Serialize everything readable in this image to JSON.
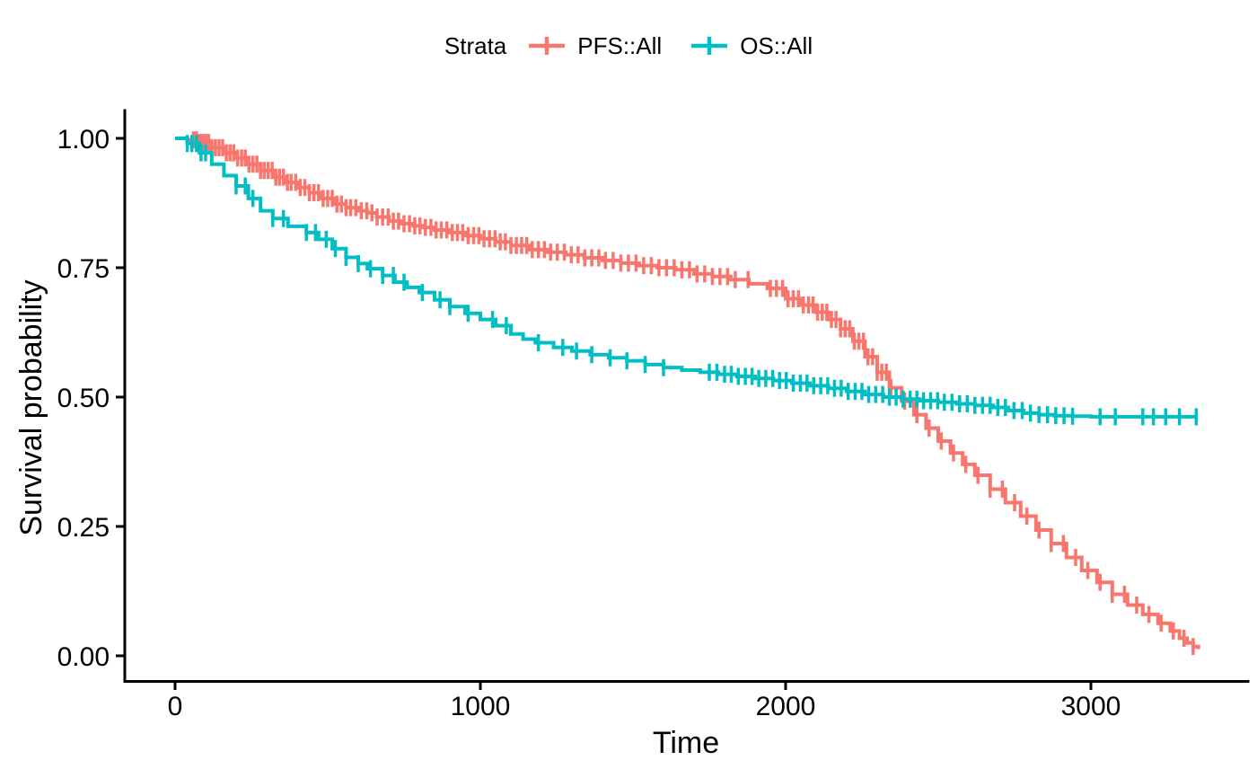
{
  "legend": {
    "title": "Strata",
    "items": [
      {
        "label": "PFS::All",
        "color": "#F8766D"
      },
      {
        "label": "OS::All",
        "color": "#00BFC4"
      }
    ]
  },
  "chart_data": {
    "type": "line",
    "subtype": "kaplan-meier-step-curves-with-censor-marks",
    "title": "",
    "xlabel": "Time",
    "ylabel": "Survival probability",
    "xlim": [
      0,
      3353
    ],
    "ylim": [
      0,
      1
    ],
    "grid": false,
    "legend_position": "top-center",
    "x_ticks": [
      {
        "value": 0,
        "label": "0"
      },
      {
        "value": 1000,
        "label": "1000"
      },
      {
        "value": 2000,
        "label": "2000"
      },
      {
        "value": 3000,
        "label": "3000"
      }
    ],
    "y_ticks": [
      {
        "value": 0.0,
        "label": "0.00"
      },
      {
        "value": 0.25,
        "label": "0.25"
      },
      {
        "value": 0.5,
        "label": "0.50"
      },
      {
        "value": 0.75,
        "label": "0.75"
      },
      {
        "value": 1.0,
        "label": "1.00"
      }
    ],
    "series": [
      {
        "name": "PFS::All",
        "color": "#F8766D",
        "points": [
          [
            0,
            1.0
          ],
          [
            40,
            0.997
          ],
          [
            80,
            0.992
          ],
          [
            120,
            0.982
          ],
          [
            160,
            0.972
          ],
          [
            200,
            0.962
          ],
          [
            240,
            0.95
          ],
          [
            280,
            0.938
          ],
          [
            320,
            0.925
          ],
          [
            360,
            0.915
          ],
          [
            400,
            0.905
          ],
          [
            440,
            0.895
          ],
          [
            480,
            0.884
          ],
          [
            520,
            0.873
          ],
          [
            560,
            0.866
          ],
          [
            600,
            0.86
          ],
          [
            630,
            0.856
          ],
          [
            660,
            0.848
          ],
          [
            700,
            0.84
          ],
          [
            740,
            0.835
          ],
          [
            780,
            0.831
          ],
          [
            810,
            0.828
          ],
          [
            850,
            0.823
          ],
          [
            900,
            0.818
          ],
          [
            950,
            0.812
          ],
          [
            1000,
            0.806
          ],
          [
            1050,
            0.8
          ],
          [
            1100,
            0.793
          ],
          [
            1160,
            0.785
          ],
          [
            1220,
            0.78
          ],
          [
            1280,
            0.775
          ],
          [
            1340,
            0.769
          ],
          [
            1400,
            0.764
          ],
          [
            1460,
            0.759
          ],
          [
            1520,
            0.754
          ],
          [
            1580,
            0.75
          ],
          [
            1640,
            0.746
          ],
          [
            1700,
            0.738
          ],
          [
            1760,
            0.733
          ],
          [
            1820,
            0.727
          ],
          [
            1880,
            0.719
          ],
          [
            1940,
            0.71
          ],
          [
            2000,
            0.69
          ],
          [
            2050,
            0.678
          ],
          [
            2100,
            0.664
          ],
          [
            2140,
            0.65
          ],
          [
            2180,
            0.632
          ],
          [
            2220,
            0.608
          ],
          [
            2260,
            0.578
          ],
          [
            2300,
            0.548
          ],
          [
            2340,
            0.518
          ],
          [
            2380,
            0.492
          ],
          [
            2420,
            0.466
          ],
          [
            2460,
            0.44
          ],
          [
            2500,
            0.415
          ],
          [
            2540,
            0.392
          ],
          [
            2580,
            0.37
          ],
          [
            2620,
            0.349
          ],
          [
            2670,
            0.322
          ],
          [
            2720,
            0.296
          ],
          [
            2770,
            0.27
          ],
          [
            2820,
            0.243
          ],
          [
            2870,
            0.217
          ],
          [
            2920,
            0.19
          ],
          [
            2970,
            0.165
          ],
          [
            3020,
            0.142
          ],
          [
            3070,
            0.119
          ],
          [
            3120,
            0.098
          ],
          [
            3170,
            0.08
          ],
          [
            3220,
            0.063
          ],
          [
            3260,
            0.048
          ],
          [
            3290,
            0.034
          ],
          [
            3315,
            0.025
          ],
          [
            3335,
            0.018
          ],
          [
            3352,
            0.013
          ]
        ],
        "censor_times": [
          60,
          70,
          80,
          90,
          100,
          110,
          120,
          132,
          144,
          156,
          168,
          180,
          192,
          205,
          218,
          230,
          242,
          255,
          268,
          280,
          292,
          305,
          318,
          330,
          342,
          355,
          368,
          380,
          395,
          410,
          425,
          440,
          455,
          470,
          485,
          500,
          515,
          530,
          545,
          560,
          575,
          592,
          610,
          628,
          645,
          662,
          680,
          698,
          715,
          732,
          750,
          768,
          785,
          802,
          820,
          838,
          855,
          872,
          890,
          908,
          925,
          942,
          960,
          978,
          995,
          1012,
          1030,
          1048,
          1065,
          1082,
          1100,
          1118,
          1135,
          1152,
          1170,
          1190,
          1210,
          1230,
          1252,
          1275,
          1298,
          1320,
          1342,
          1365,
          1388,
          1410,
          1435,
          1460,
          1485,
          1510,
          1535,
          1560,
          1585,
          1610,
          1635,
          1660,
          1685,
          1710,
          1735,
          1760,
          1785,
          1810,
          1835,
          1877,
          1950,
          1970,
          1990,
          2008,
          2025,
          2042,
          2058,
          2075,
          2090,
          2105,
          2120,
          2135,
          2150,
          2165,
          2180,
          2195,
          2210,
          2225,
          2240,
          2255,
          2270,
          2285,
          2300,
          2315,
          2330,
          2345,
          2390,
          2430,
          2470,
          2510,
          2550,
          2590,
          2630,
          2670,
          2710,
          2750,
          2790,
          2830,
          2870,
          2910,
          2950,
          2990,
          3030,
          3070,
          3110,
          3150,
          3190,
          3230,
          3270,
          3305,
          3335
        ]
      },
      {
        "name": "OS::All",
        "color": "#00BFC4",
        "points": [
          [
            0,
            1.0
          ],
          [
            40,
            0.99
          ],
          [
            80,
            0.972
          ],
          [
            120,
            0.95
          ],
          [
            160,
            0.928
          ],
          [
            200,
            0.908
          ],
          [
            240,
            0.884
          ],
          [
            280,
            0.86
          ],
          [
            320,
            0.845
          ],
          [
            370,
            0.83
          ],
          [
            430,
            0.818
          ],
          [
            470,
            0.805
          ],
          [
            515,
            0.787
          ],
          [
            560,
            0.77
          ],
          [
            600,
            0.758
          ],
          [
            630,
            0.748
          ],
          [
            680,
            0.735
          ],
          [
            720,
            0.722
          ],
          [
            760,
            0.712
          ],
          [
            800,
            0.702
          ],
          [
            850,
            0.688
          ],
          [
            900,
            0.675
          ],
          [
            950,
            0.662
          ],
          [
            1000,
            0.65
          ],
          [
            1050,
            0.638
          ],
          [
            1100,
            0.622
          ],
          [
            1140,
            0.612
          ],
          [
            1180,
            0.605
          ],
          [
            1240,
            0.596
          ],
          [
            1300,
            0.589
          ],
          [
            1360,
            0.582
          ],
          [
            1420,
            0.576
          ],
          [
            1480,
            0.57
          ],
          [
            1540,
            0.563
          ],
          [
            1600,
            0.557
          ],
          [
            1660,
            0.552
          ],
          [
            1720,
            0.548
          ],
          [
            1780,
            0.544
          ],
          [
            1840,
            0.54
          ],
          [
            1900,
            0.536
          ],
          [
            1960,
            0.532
          ],
          [
            2020,
            0.527
          ],
          [
            2080,
            0.522
          ],
          [
            2140,
            0.517
          ],
          [
            2200,
            0.511
          ],
          [
            2260,
            0.505
          ],
          [
            2320,
            0.5
          ],
          [
            2380,
            0.496
          ],
          [
            2440,
            0.493
          ],
          [
            2500,
            0.49
          ],
          [
            2560,
            0.487
          ],
          [
            2620,
            0.484
          ],
          [
            2680,
            0.48
          ],
          [
            2730,
            0.474
          ],
          [
            2780,
            0.469
          ],
          [
            2830,
            0.466
          ],
          [
            2880,
            0.464
          ],
          [
            2940,
            0.463
          ],
          [
            3000,
            0.462
          ],
          [
            3350,
            0.462
          ]
        ],
        "censor_times": [
          40,
          55,
          70,
          85,
          100,
          200,
          230,
          255,
          320,
          355,
          430,
          460,
          495,
          525,
          560,
          600,
          640,
          680,
          715,
          750,
          810,
          868,
          900,
          960,
          1040,
          1085,
          1190,
          1270,
          1315,
          1365,
          1425,
          1480,
          1540,
          1600,
          1750,
          1775,
          1800,
          1822,
          1845,
          1868,
          1890,
          1912,
          1935,
          1958,
          1980,
          2002,
          2025,
          2048,
          2070,
          2092,
          2115,
          2138,
          2160,
          2182,
          2205,
          2228,
          2250,
          2272,
          2295,
          2318,
          2340,
          2362,
          2385,
          2408,
          2430,
          2452,
          2475,
          2498,
          2520,
          2545,
          2570,
          2595,
          2620,
          2645,
          2670,
          2695,
          2720,
          2748,
          2775,
          2802,
          2830,
          2858,
          2885,
          2912,
          2940,
          3030,
          3080,
          3170,
          3205,
          3245,
          3290,
          3345
        ]
      }
    ]
  }
}
